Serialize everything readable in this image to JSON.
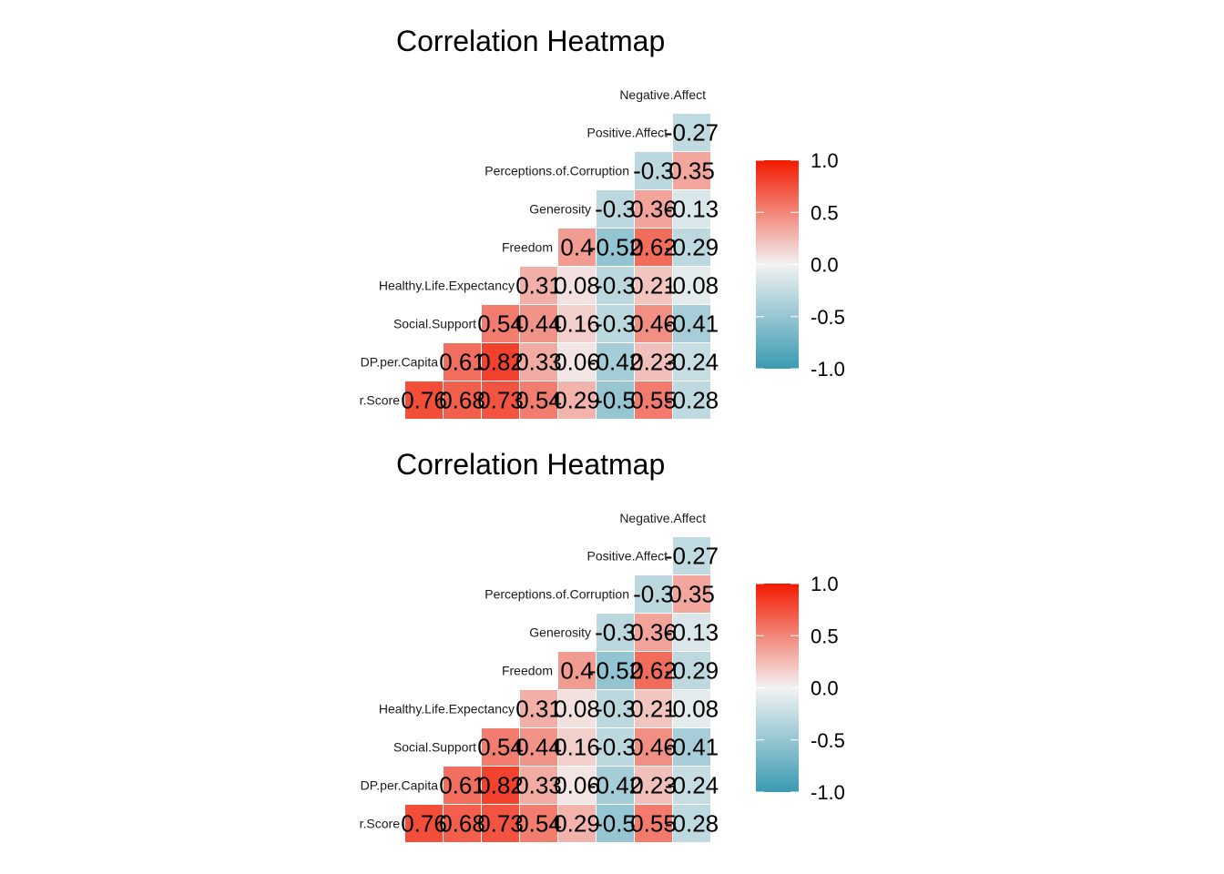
{
  "chart_data": [
    {
      "type": "heatmap",
      "title": "Correlation Heatmap",
      "row_labels_bottom_to_top": [
        "Ladder.Score",
        "GDP.per.Capita",
        "Social.Support",
        "Healthy.Life.Expectancy",
        "Freedom",
        "Generosity",
        "Perceptions.of.Corruption",
        "Positive.Affect"
      ],
      "top_label": "Negative.Affect",
      "rows": [
        [
          "0.76",
          "0.68",
          "0.73",
          "0.54",
          "0.29",
          "-0.5",
          "0.55",
          "-0.28"
        ],
        [
          "0.61",
          "0.82",
          "0.33",
          "0.06",
          "-0.42",
          "0.23",
          "-0.24"
        ],
        [
          "0.54",
          "0.44",
          "0.16",
          "-0.3",
          "0.46",
          "-0.41"
        ],
        [
          "0.31",
          "0.08",
          "-0.3",
          "0.21",
          "-0.08"
        ],
        [
          "0.4",
          "-0.52",
          "0.62",
          "-0.29"
        ],
        [
          "-0.3",
          "0.36",
          "-0.13"
        ],
        [
          "-0.3",
          "0.35"
        ],
        [
          "-0.27"
        ]
      ],
      "legend": {
        "ticks": [
          "1.0",
          "0.5",
          "0.0",
          "-0.5",
          "-1.0"
        ],
        "range": [
          -1,
          1
        ]
      },
      "colors": {
        "low": "#3a9ab2",
        "mid": "#f2f2f2",
        "high": "#f21a00"
      }
    },
    {
      "type": "heatmap",
      "title": "Correlation Heatmap",
      "row_labels_bottom_to_top": [
        "Ladder.Score",
        "GDP.per.Capita",
        "Social.Support",
        "Healthy.Life.Expectancy",
        "Freedom",
        "Generosity",
        "Perceptions.of.Corruption",
        "Positive.Affect"
      ],
      "top_label": "Negative.Affect",
      "rows": [
        [
          "0.76",
          "0.68",
          "0.73",
          "0.54",
          "0.29",
          "-0.5",
          "0.55",
          "-0.28"
        ],
        [
          "0.61",
          "0.82",
          "0.33",
          "0.06",
          "-0.42",
          "0.23",
          "-0.24"
        ],
        [
          "0.54",
          "0.44",
          "0.16",
          "-0.3",
          "0.46",
          "-0.41"
        ],
        [
          "0.31",
          "0.08",
          "-0.3",
          "0.21",
          "-0.08"
        ],
        [
          "0.4",
          "-0.52",
          "0.62",
          "-0.29"
        ],
        [
          "-0.3",
          "0.36",
          "-0.13"
        ],
        [
          "-0.3",
          "0.35"
        ],
        [
          "-0.27"
        ]
      ],
      "legend": {
        "ticks": [
          "1.0",
          "0.5",
          "0.0",
          "-0.5",
          "-1.0"
        ],
        "range": [
          -1,
          1
        ]
      },
      "colors": {
        "low": "#3a9ab2",
        "mid": "#f2f2f2",
        "high": "#f21a00"
      }
    }
  ]
}
